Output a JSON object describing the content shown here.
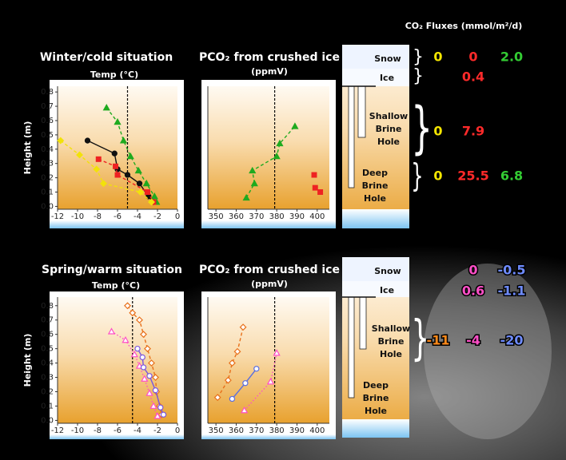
{
  "chart_data": [
    {
      "type": "line",
      "title": "Winter/cold situation",
      "xlabel": "Temp (°C)",
      "ylabel": "Height (m)",
      "xlim": [
        -12,
        0
      ],
      "xticks": [
        -12,
        -10,
        -8,
        -6,
        -4,
        -2,
        0
      ],
      "ylim": [
        -0.02,
        0.84
      ],
      "yticks": [
        {
          "value": 0,
          "label": "0.0"
        },
        0.1,
        0.2,
        0.3,
        0.4,
        0.5,
        0.6,
        0.7,
        0.8
      ],
      "ref_x": -5,
      "series": [
        {
          "color": "#1faa1f",
          "marker": "triangle",
          "filled": true,
          "dash": "dashed",
          "x": [
            -7.1,
            -6.0,
            -5.4,
            -4.7,
            -3.9,
            -3.1,
            -2.3,
            -2.1
          ],
          "values": [
            0.69,
            0.59,
            0.46,
            0.35,
            0.25,
            0.16,
            0.07,
            0.03
          ]
        },
        {
          "color": "#111111",
          "marker": "circle",
          "filled": true,
          "dash": "solid",
          "x": [
            -9.0,
            -6.3,
            -6.0,
            -5.0,
            -3.8,
            -2.9,
            -2.4
          ],
          "values": [
            0.46,
            0.37,
            0.26,
            0.22,
            0.16,
            0.07,
            0.03
          ]
        },
        {
          "color": "#ee2222",
          "marker": "square",
          "filled": true,
          "dash": "dashed",
          "x": [
            -7.9,
            -6.2,
            -6.0,
            -3.0,
            -2.4
          ],
          "values": [
            0.33,
            0.28,
            0.22,
            0.1,
            0.03
          ]
        },
        {
          "color": "#f2e20a",
          "marker": "diamond",
          "filled": true,
          "dash": "dashed",
          "x": [
            -11.7,
            -9.8,
            -8.1,
            -7.4,
            -3.7,
            -2.6
          ],
          "values": [
            0.46,
            0.36,
            0.26,
            0.16,
            0.1,
            0.03
          ]
        }
      ]
    },
    {
      "type": "line",
      "title": "PCO₂ from crushed ice",
      "xlabel": "(ppmV)",
      "xlim": [
        346,
        406
      ],
      "xticks": [
        350,
        360,
        370,
        380,
        390,
        400
      ],
      "ylim": [
        -0.02,
        0.84
      ],
      "ref_x": 379,
      "series": [
        {
          "color": "#1faa1f",
          "marker": "triangle",
          "filled": true,
          "dash": "dashed",
          "x": [
            365,
            369,
            368,
            380,
            381.5,
            389
          ],
          "values": [
            0.06,
            0.16,
            0.25,
            0.35,
            0.44,
            0.56
          ]
        },
        {
          "color": "#ee2222",
          "marker": "square",
          "filled": true,
          "dash": "none",
          "x": [
            398.5,
            399,
            401.5
          ],
          "values": [
            0.22,
            0.13,
            0.1
          ]
        }
      ]
    },
    {
      "type": "line",
      "title": "Spring/warm situation",
      "xlabel": "Temp (°C)",
      "ylabel": "Height (m)",
      "xlim": [
        -12,
        0
      ],
      "xticks": [
        -12,
        -10,
        -8,
        -6,
        -4,
        -2,
        0
      ],
      "ylim": [
        -0.02,
        0.86
      ],
      "yticks": [
        {
          "value": 0,
          "label": "0.0"
        },
        0.1,
        0.2,
        0.3,
        0.4,
        0.5,
        0.6,
        0.7,
        0.8
      ],
      "ref_x": -4.5,
      "series": [
        {
          "color": "#e8701a",
          "marker": "diamond",
          "filled": false,
          "dash": "dashed",
          "x": [
            -5.0,
            -4.5,
            -3.8,
            -3.4,
            -3.0,
            -2.6,
            -2.2,
            -2.1,
            -1.8,
            -1.6
          ],
          "values": [
            0.8,
            0.75,
            0.7,
            0.6,
            0.5,
            0.4,
            0.3,
            0.2,
            0.1,
            0.04
          ]
        },
        {
          "color": "#ff4fc8",
          "marker": "triangle",
          "filled": false,
          "dash": "dotted",
          "x": [
            -6.6,
            -5.2,
            -4.3,
            -3.8,
            -3.3,
            -2.8,
            -2.4,
            -2.0
          ],
          "values": [
            0.62,
            0.56,
            0.46,
            0.38,
            0.29,
            0.19,
            0.1,
            0.03
          ]
        },
        {
          "color": "#7a55e0",
          "marker": "circle",
          "filled": false,
          "dash": "solid",
          "x": [
            -4.0,
            -3.5,
            -3.4,
            -2.8,
            -2.2,
            -1.7,
            -1.4
          ],
          "values": [
            0.5,
            0.44,
            0.37,
            0.31,
            0.21,
            0.09,
            0.04
          ]
        }
      ]
    },
    {
      "type": "line",
      "title": "PCO₂ from crushed ice",
      "xlabel": "(ppmV)",
      "xlim": [
        346,
        406
      ],
      "xticks": [
        350,
        360,
        370,
        380,
        390,
        400
      ],
      "ylim": [
        -0.02,
        0.86
      ],
      "ref_x": 379,
      "series": [
        {
          "color": "#e8701a",
          "marker": "diamond",
          "filled": false,
          "dash": "dashed",
          "x": [
            363.4,
            360.6,
            358.0,
            356.0,
            350.8
          ],
          "values": [
            0.65,
            0.48,
            0.4,
            0.28,
            0.16
          ]
        },
        {
          "color": "#5a6ee0",
          "marker": "circle",
          "filled": false,
          "dash": "solid",
          "x": [
            370,
            364.5,
            358
          ],
          "values": [
            0.36,
            0.26,
            0.15
          ]
        },
        {
          "color": "#ff4fc8",
          "marker": "triangle",
          "filled": false,
          "dash": "dotted",
          "x": [
            380,
            377,
            364
          ],
          "values": [
            0.47,
            0.27,
            0.07
          ]
        }
      ]
    }
  ],
  "fluxes": {
    "title": "CO₂ Fluxes (mmol/m²/d)",
    "panels": [
      {
        "labels": {
          "snow": "Snow",
          "ice": "Ice",
          "shallow": [
            "Shallow",
            "Brine",
            "Hole"
          ],
          "deep": [
            "Deep",
            "Brine",
            "Hole"
          ]
        },
        "colors": [
          "#f5e600",
          "#ff2a2a",
          "#33cc33"
        ],
        "rows": {
          "snow": [
            "0",
            "0",
            "2.0"
          ],
          "ice": [
            null,
            "0.4",
            null
          ],
          "shallow": [
            "0",
            "7.9",
            null
          ],
          "deep": [
            "0",
            "25.5",
            "6.8"
          ]
        }
      },
      {
        "labels": {
          "snow": "Snow",
          "ice": "Ice",
          "shallow": [
            "Shallow",
            "Brine",
            "Hole"
          ],
          "deep": [
            "Deep",
            "Brine",
            "Hole"
          ]
        },
        "colors": [
          "#ff8a1a",
          "#ff4fc8",
          "#6f8cff"
        ],
        "rows": {
          "snow": [
            null,
            "0",
            "-0.5"
          ],
          "ice": [
            null,
            "0.6",
            "-1.1"
          ],
          "shallow": [
            "-11",
            "-4",
            "-20"
          ]
        }
      }
    ]
  }
}
